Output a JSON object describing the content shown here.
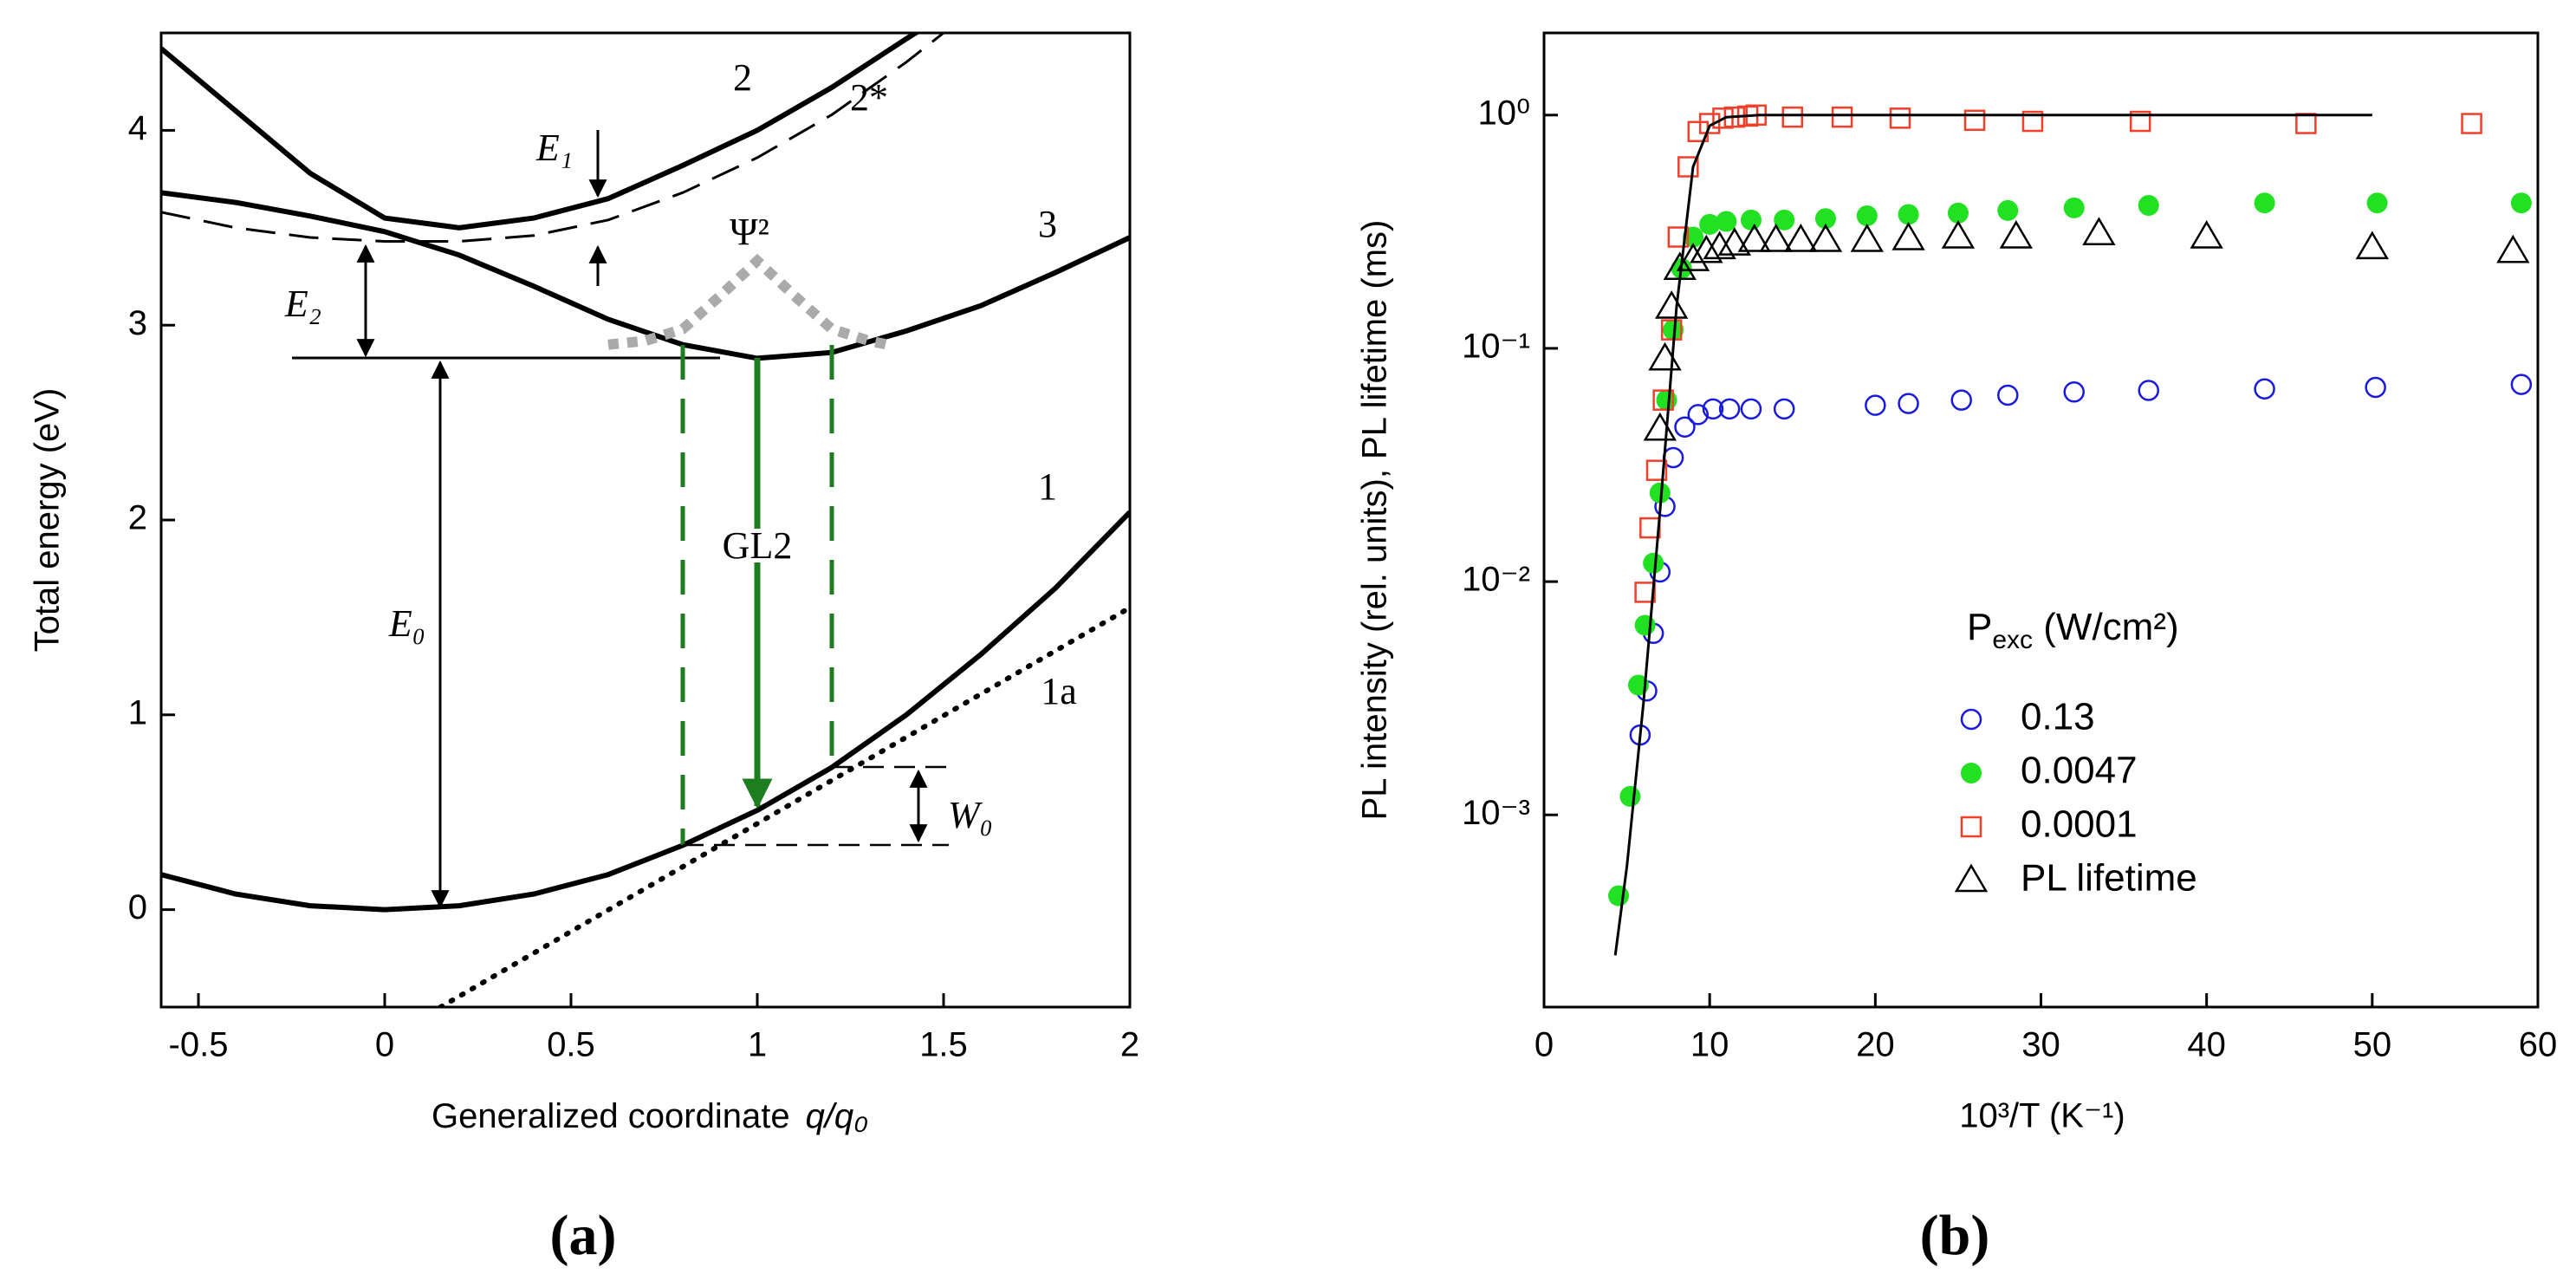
{
  "chart_data": [
    {
      "type": "line",
      "panel_label": "(a)",
      "y_label": "Total energy (eV)",
      "x_label": "Generalized coordinate",
      "x_label_var": "q/q₀",
      "xlim": [
        -0.6,
        2
      ],
      "xticks": [
        -0.5,
        0,
        0.5,
        1,
        1.5,
        2
      ],
      "ylim": [
        -0.5,
        4.5
      ],
      "yticks": [
        0,
        1,
        2,
        3,
        4
      ],
      "series": [
        {
          "color": "#000000",
          "style": "solid",
          "x": [
            -0.6,
            -0.4,
            -0.2,
            0,
            0.2,
            0.4,
            0.6,
            0.8,
            1.0,
            1.2,
            1.4,
            1.6,
            1.8,
            2.0
          ],
          "values": [
            0.18,
            0.08,
            0.02,
            0,
            0.02,
            0.08,
            0.18,
            0.33,
            0.51,
            0.73,
            1.0,
            1.31,
            1.65,
            2.04
          ]
        },
        {
          "color": "#000000",
          "style": "solid",
          "x": [
            -0.6,
            -0.4,
            -0.2,
            0,
            0.2,
            0.4,
            0.6,
            0.8,
            1.0,
            1.2,
            1.4,
            1.6,
            1.8,
            2.0
          ],
          "values": [
            3.68,
            3.63,
            3.56,
            3.48,
            3.36,
            3.2,
            3.03,
            2.9,
            2.83,
            2.86,
            2.97,
            3.1,
            3.27,
            3.45
          ]
        },
        {
          "color": "#000000",
          "style": "solid",
          "x": [
            -0.6,
            -0.4,
            -0.2,
            0,
            0.2,
            0.4,
            0.6,
            0.8,
            1.0,
            1.2,
            1.4,
            1.45
          ],
          "values": [
            4.42,
            4.1,
            3.78,
            3.55,
            3.5,
            3.55,
            3.65,
            3.82,
            4.0,
            4.22,
            4.47,
            4.53
          ]
        },
        {
          "color": "#000000",
          "style": "dashed",
          "x": [
            -0.6,
            -0.4,
            -0.2,
            0,
            0.2,
            0.4,
            0.6,
            0.8,
            1.0,
            1.2,
            1.4,
            1.5
          ],
          "values": [
            3.58,
            3.5,
            3.45,
            3.43,
            3.43,
            3.46,
            3.54,
            3.68,
            3.86,
            4.08,
            4.35,
            4.5
          ]
        },
        {
          "color": "#000000",
          "style": "dotted",
          "x": [
            0.15,
            2.0
          ],
          "values": [
            -0.5,
            1.55
          ]
        },
        {
          "color": "#aaaaaa",
          "style": "square-dotted",
          "x": [
            0.6,
            0.7,
            0.8,
            0.9,
            1.0,
            1.1,
            1.2,
            1.3,
            1.35
          ],
          "values": [
            2.9,
            2.92,
            2.98,
            3.15,
            3.33,
            3.15,
            2.98,
            2.92,
            2.9
          ]
        }
      ],
      "annotations": [
        "2",
        "2*",
        "3",
        "1",
        "1a",
        "E₁",
        "E₂",
        "E₀",
        "W₀",
        "Ψ²",
        "GL2"
      ]
    },
    {
      "type": "scatter",
      "panel_label": "(b)",
      "y_label": "PL intensity (rel. units), PL lifetime (ms)",
      "x_label": "10³/T (K⁻¹)",
      "log_y": true,
      "xlim": [
        0,
        60
      ],
      "xticks": [
        0,
        10,
        20,
        30,
        40,
        50,
        60
      ],
      "ylim": [
        0.00015,
        2.25
      ],
      "yticks": [
        {
          "value": 0.001,
          "label": "10⁻³"
        },
        {
          "value": 0.01,
          "label": "10⁻²"
        },
        {
          "value": 0.1,
          "label": "10⁻¹"
        },
        {
          "value": 1,
          "label": "10⁰"
        }
      ],
      "legend_title": "P",
      "legend_title_sub": "exc",
      "legend_title_rest": " (W/cm²)",
      "series": [
        {
          "name": "0.13",
          "color": "#1a1adc",
          "marker": "open-circle",
          "x": [
            5.8,
            6.2,
            6.6,
            7.0,
            7.3,
            7.8,
            8.5,
            9.3,
            10.2,
            11.2,
            12.5,
            14.5,
            20,
            22,
            25.2,
            28,
            32,
            36.5,
            43.5,
            50.2,
            59
          ],
          "values": [
            0.0022,
            0.0034,
            0.006,
            0.011,
            0.021,
            0.034,
            0.046,
            0.052,
            0.055,
            0.055,
            0.055,
            0.055,
            0.057,
            0.058,
            0.06,
            0.063,
            0.065,
            0.066,
            0.067,
            0.068,
            0.07
          ]
        },
        {
          "name": "0.0047",
          "color": "#22e022",
          "marker": "filled-circle",
          "x": [
            4.5,
            5.2,
            5.7,
            6.1,
            6.6,
            7.0,
            7.4,
            7.8,
            8.3,
            9,
            10,
            11,
            12.5,
            14.5,
            17,
            19.5,
            22,
            25,
            28,
            32,
            36.5,
            43.5,
            50.3,
            59
          ],
          "values": [
            0.00045,
            0.0012,
            0.0036,
            0.0065,
            0.012,
            0.024,
            0.06,
            0.12,
            0.22,
            0.3,
            0.34,
            0.35,
            0.355,
            0.355,
            0.36,
            0.37,
            0.375,
            0.38,
            0.39,
            0.4,
            0.41,
            0.42,
            0.42,
            0.42
          ]
        },
        {
          "name": "0.0001",
          "color": "#f0402a",
          "marker": "open-square",
          "x": [
            6.1,
            6.4,
            6.8,
            7.2,
            7.7,
            8.1,
            8.7,
            9.3,
            10,
            10.8,
            11.5,
            12.3,
            12.8,
            15,
            18,
            21.5,
            26,
            29.5,
            36,
            46,
            56
          ],
          "values": [
            0.009,
            0.017,
            0.03,
            0.06,
            0.12,
            0.3,
            0.6,
            0.85,
            0.92,
            0.97,
            0.98,
            0.99,
            1.0,
            0.98,
            0.98,
            0.97,
            0.95,
            0.94,
            0.94,
            0.92,
            0.92
          ]
        },
        {
          "name": "PL lifetime",
          "color": "#000000",
          "marker": "open-triangle",
          "x": [
            7.0,
            7.3,
            7.7,
            8.2,
            9,
            9.8,
            10.6,
            11.5,
            12.7,
            14,
            15.5,
            17,
            19.5,
            22,
            25,
            28.5,
            33.5,
            40,
            50,
            58.5
          ],
          "values": [
            0.045,
            0.09,
            0.15,
            0.22,
            0.24,
            0.26,
            0.27,
            0.28,
            0.29,
            0.29,
            0.29,
            0.29,
            0.29,
            0.295,
            0.3,
            0.3,
            0.31,
            0.3,
            0.27,
            0.26
          ]
        },
        {
          "color": "#000000",
          "marker": "line",
          "x": [
            4.3,
            5,
            6,
            7,
            8,
            9,
            10,
            11,
            13,
            50
          ],
          "values": [
            0.00025,
            0.0006,
            0.003,
            0.02,
            0.15,
            0.6,
            0.9,
            0.98,
            1.0,
            1.0
          ]
        }
      ]
    }
  ]
}
